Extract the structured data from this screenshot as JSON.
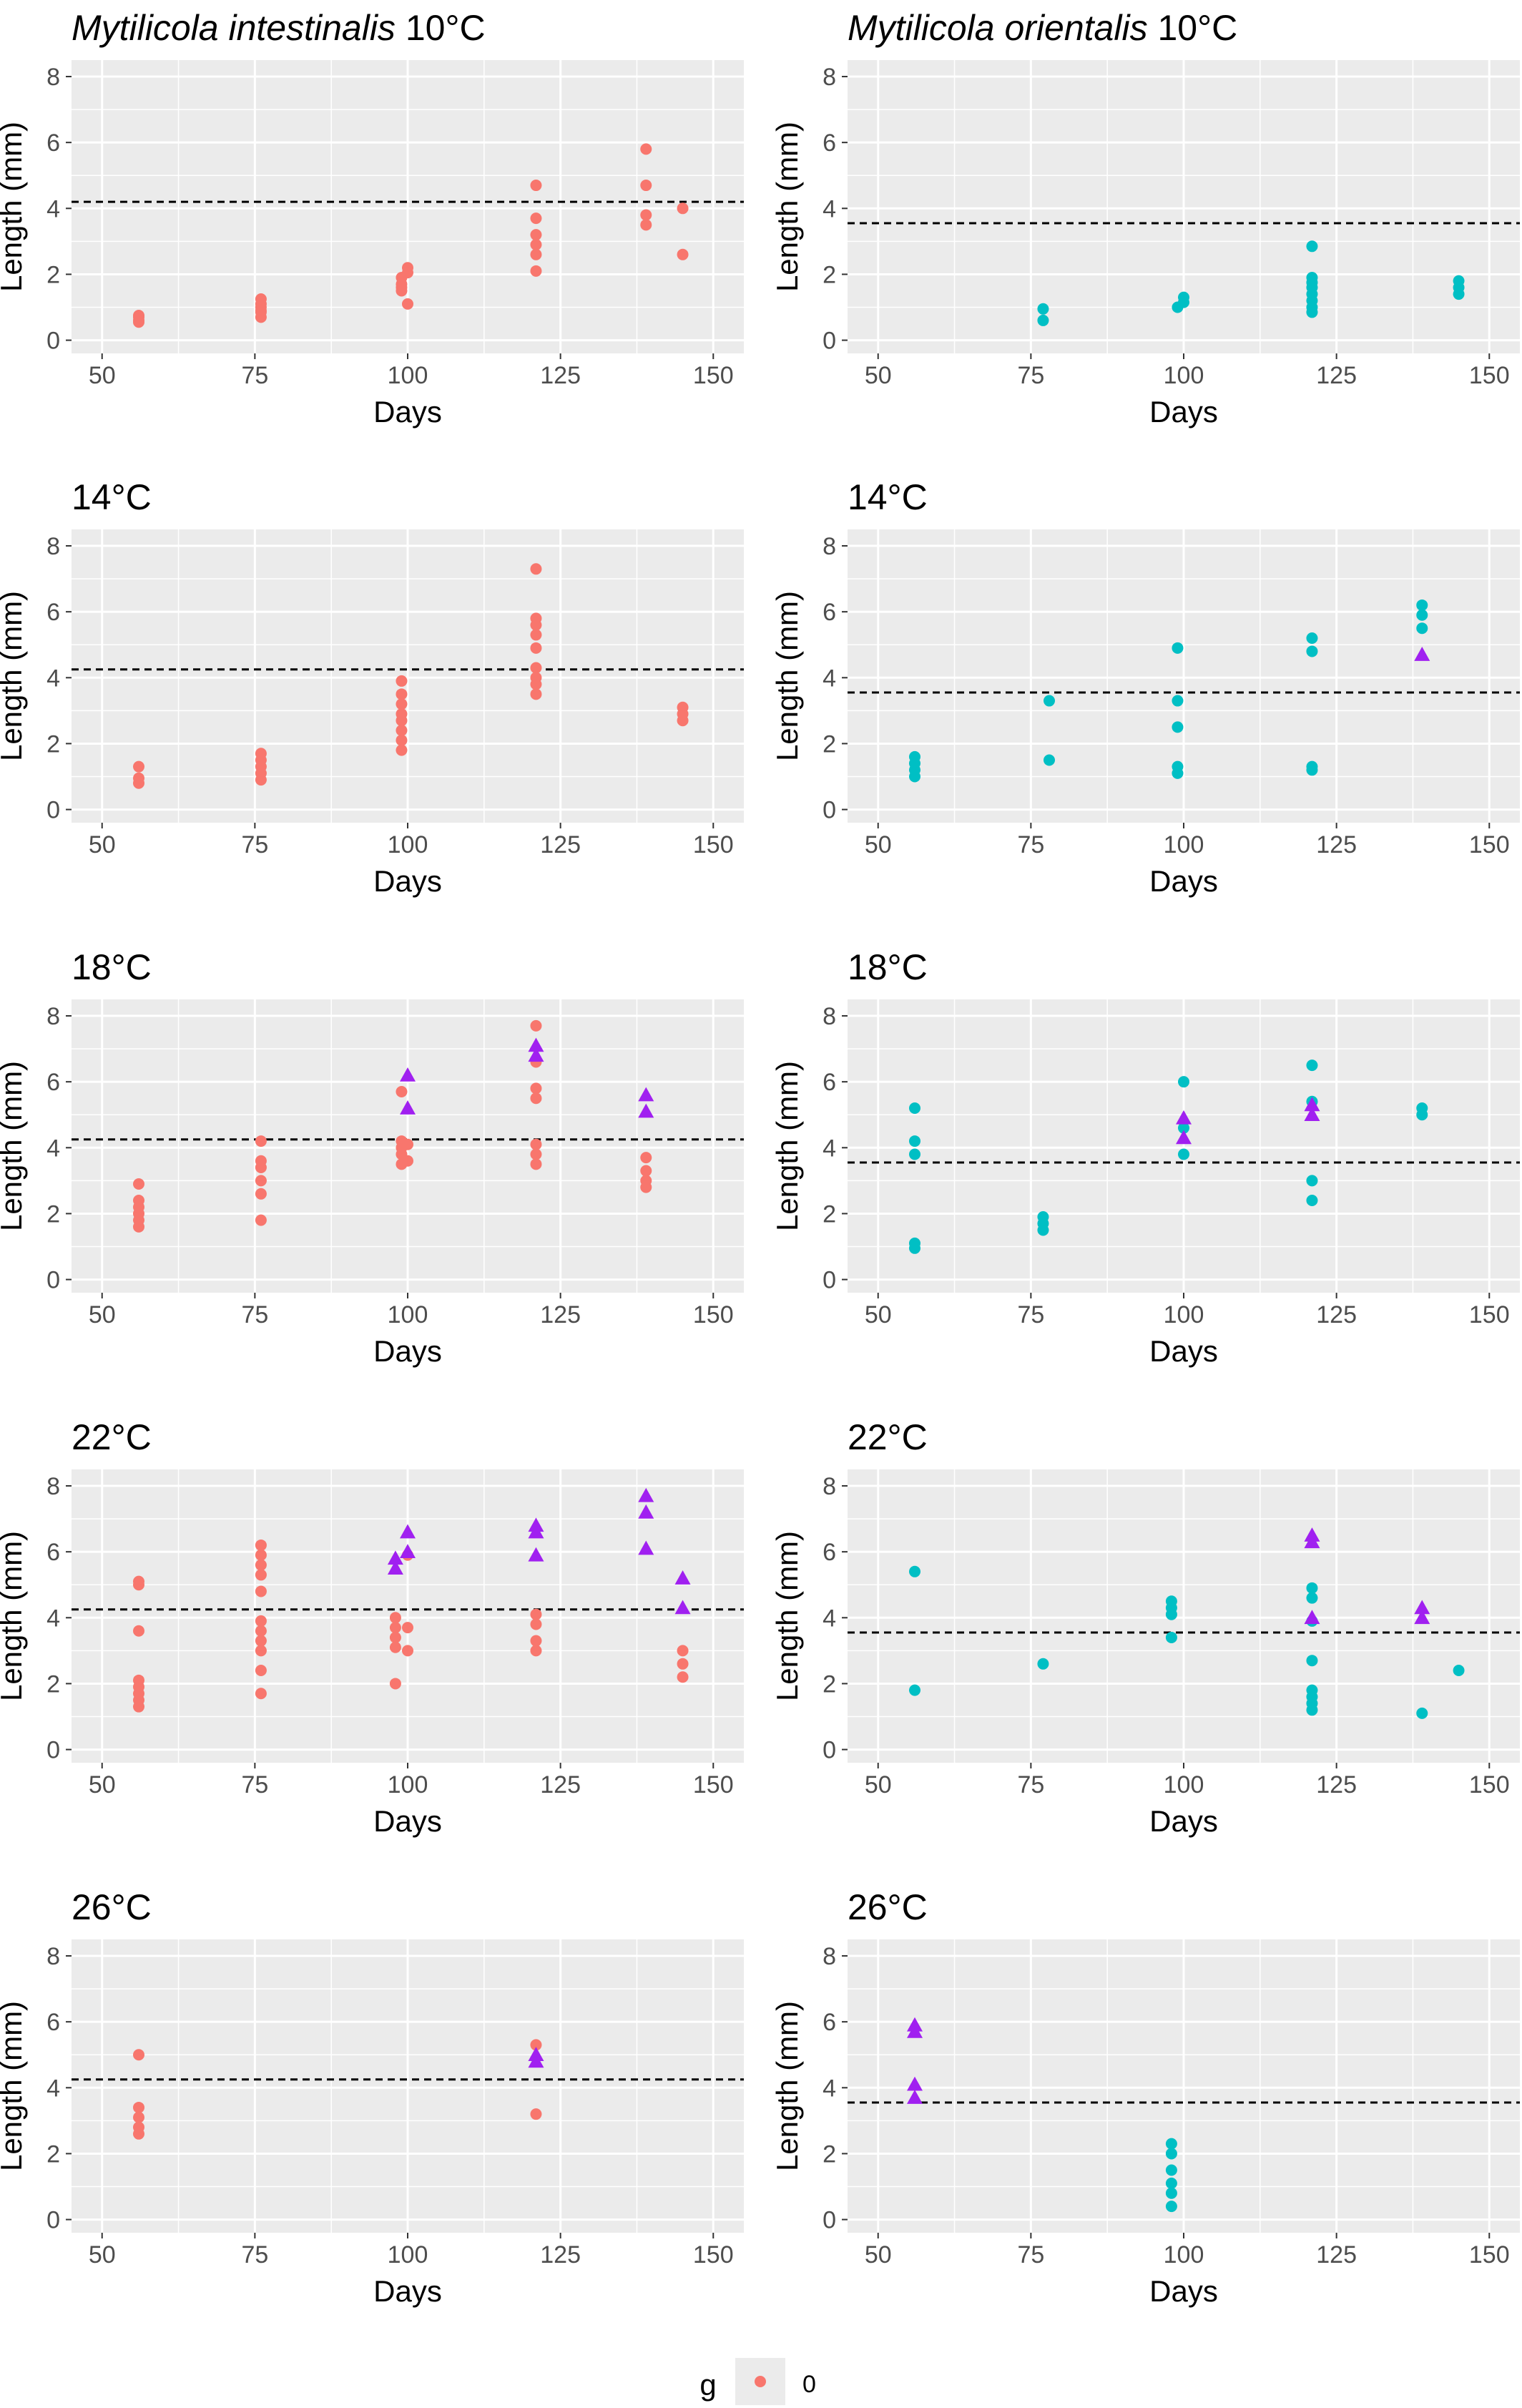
{
  "figure": {
    "legend": {
      "title": "g",
      "label": "0"
    },
    "colors": {
      "intestinalis": "#F8766D",
      "orientalis": "#00BFC4",
      "triangle": "#A020F0",
      "panel_bg": "#EBEBEB",
      "grid": "#FFFFFF",
      "axis_text": "#4D4D4D"
    }
  },
  "chart_data": [
    {
      "id": "int10",
      "type": "scatter",
      "title_species": "Mytilicola intestinalis",
      "title_temp": " 10°C",
      "xlabel": "Days",
      "ylabel": "Length (mm)",
      "xlim": [
        45,
        155
      ],
      "ylim": [
        -0.4,
        8.5
      ],
      "xticks": [
        "50",
        "75",
        "100",
        "125",
        "150"
      ],
      "yticks": [
        "0",
        "2",
        "4",
        "6",
        "8"
      ],
      "hline": 4.2,
      "color_key": "intestinalis",
      "circles": [
        [
          56,
          0.6
        ],
        [
          56,
          0.7
        ],
        [
          56,
          0.75
        ],
        [
          56,
          0.55
        ],
        [
          76,
          0.7
        ],
        [
          76,
          0.85
        ],
        [
          76,
          1.0
        ],
        [
          76,
          1.1
        ],
        [
          76,
          1.25
        ],
        [
          76,
          0.9
        ],
        [
          99,
          1.5
        ],
        [
          99,
          1.7
        ],
        [
          99,
          1.9
        ],
        [
          99,
          1.6
        ],
        [
          100,
          2.2
        ],
        [
          100,
          2.05
        ],
        [
          100,
          1.1
        ],
        [
          121,
          2.1
        ],
        [
          121,
          2.6
        ],
        [
          121,
          2.9
        ],
        [
          121,
          3.2
        ],
        [
          121,
          3.7
        ],
        [
          121,
          4.7
        ],
        [
          139,
          3.5
        ],
        [
          139,
          3.8
        ],
        [
          139,
          4.7
        ],
        [
          139,
          5.8
        ],
        [
          145,
          2.6
        ],
        [
          145,
          4.0
        ]
      ],
      "triangles": []
    },
    {
      "id": "ori10",
      "type": "scatter",
      "title_species": "Mytilicola orientalis",
      "title_temp": " 10°C",
      "xlabel": "Days",
      "ylabel": "Length (mm)",
      "xlim": [
        45,
        155
      ],
      "ylim": [
        -0.4,
        8.5
      ],
      "xticks": [
        "50",
        "75",
        "100",
        "125",
        "150"
      ],
      "yticks": [
        "0",
        "2",
        "4",
        "6",
        "8"
      ],
      "hline": 3.55,
      "color_key": "orientalis",
      "circles": [
        [
          77,
          0.6
        ],
        [
          77,
          0.95
        ],
        [
          99,
          1.0
        ],
        [
          100,
          1.15
        ],
        [
          100,
          1.3
        ],
        [
          121,
          0.85
        ],
        [
          121,
          1.0
        ],
        [
          121,
          1.2
        ],
        [
          121,
          1.4
        ],
        [
          121,
          1.6
        ],
        [
          121,
          1.75
        ],
        [
          121,
          1.9
        ],
        [
          121,
          2.85
        ],
        [
          145,
          1.4
        ],
        [
          145,
          1.6
        ],
        [
          145,
          1.8
        ]
      ],
      "triangles": []
    },
    {
      "id": "int14",
      "type": "scatter",
      "title_temp": "14°C",
      "xlabel": "Days",
      "ylabel": "Length (mm)",
      "xlim": [
        45,
        155
      ],
      "ylim": [
        -0.4,
        8.5
      ],
      "xticks": [
        "50",
        "75",
        "100",
        "125",
        "150"
      ],
      "yticks": [
        "0",
        "2",
        "4",
        "6",
        "8"
      ],
      "hline": 4.25,
      "color_key": "intestinalis",
      "circles": [
        [
          56,
          0.8
        ],
        [
          56,
          0.95
        ],
        [
          56,
          1.3
        ],
        [
          76,
          0.9
        ],
        [
          76,
          1.1
        ],
        [
          76,
          1.3
        ],
        [
          76,
          1.5
        ],
        [
          76,
          1.7
        ],
        [
          99,
          1.8
        ],
        [
          99,
          2.1
        ],
        [
          99,
          2.4
        ],
        [
          99,
          2.7
        ],
        [
          99,
          2.9
        ],
        [
          99,
          3.2
        ],
        [
          99,
          3.5
        ],
        [
          99,
          3.9
        ],
        [
          121,
          3.5
        ],
        [
          121,
          3.8
        ],
        [
          121,
          4.0
        ],
        [
          121,
          4.3
        ],
        [
          121,
          4.9
        ],
        [
          121,
          5.3
        ],
        [
          121,
          5.6
        ],
        [
          121,
          5.8
        ],
        [
          121,
          7.3
        ],
        [
          145,
          2.7
        ],
        [
          145,
          2.9
        ],
        [
          145,
          3.1
        ]
      ],
      "triangles": []
    },
    {
      "id": "ori14",
      "type": "scatter",
      "title_temp": "14°C",
      "xlabel": "Days",
      "ylabel": "Length (mm)",
      "xlim": [
        45,
        155
      ],
      "ylim": [
        -0.4,
        8.5
      ],
      "xticks": [
        "50",
        "75",
        "100",
        "125",
        "150"
      ],
      "yticks": [
        "0",
        "2",
        "4",
        "6",
        "8"
      ],
      "hline": 3.55,
      "color_key": "orientalis",
      "circles": [
        [
          56,
          1.0
        ],
        [
          56,
          1.2
        ],
        [
          56,
          1.4
        ],
        [
          56,
          1.6
        ],
        [
          78,
          1.5
        ],
        [
          78,
          3.3
        ],
        [
          99,
          1.1
        ],
        [
          99,
          1.3
        ],
        [
          99,
          2.5
        ],
        [
          99,
          3.3
        ],
        [
          99,
          4.9
        ],
        [
          121,
          1.2
        ],
        [
          121,
          1.3
        ],
        [
          121,
          4.8
        ],
        [
          121,
          5.2
        ],
        [
          139,
          5.5
        ],
        [
          139,
          5.9
        ],
        [
          139,
          6.2
        ]
      ],
      "triangles": [
        [
          139,
          4.7
        ]
      ]
    },
    {
      "id": "int18",
      "type": "scatter",
      "title_temp": "18°C",
      "xlabel": "Days",
      "ylabel": "Length (mm)",
      "xlim": [
        45,
        155
      ],
      "ylim": [
        -0.4,
        8.5
      ],
      "xticks": [
        "50",
        "75",
        "100",
        "125",
        "150"
      ],
      "yticks": [
        "0",
        "2",
        "4",
        "6",
        "8"
      ],
      "hline": 4.25,
      "color_key": "intestinalis",
      "circles": [
        [
          56,
          1.6
        ],
        [
          56,
          1.8
        ],
        [
          56,
          2.0
        ],
        [
          56,
          2.2
        ],
        [
          56,
          2.4
        ],
        [
          56,
          2.9
        ],
        [
          76,
          1.8
        ],
        [
          76,
          2.6
        ],
        [
          76,
          3.0
        ],
        [
          76,
          3.4
        ],
        [
          76,
          3.6
        ],
        [
          76,
          4.2
        ],
        [
          99,
          3.5
        ],
        [
          99,
          3.8
        ],
        [
          99,
          4.0
        ],
        [
          99,
          4.2
        ],
        [
          99,
          5.7
        ],
        [
          100,
          3.6
        ],
        [
          100,
          4.1
        ],
        [
          121,
          3.5
        ],
        [
          121,
          3.8
        ],
        [
          121,
          4.1
        ],
        [
          121,
          5.5
        ],
        [
          121,
          5.8
        ],
        [
          121,
          6.6
        ],
        [
          121,
          7.7
        ],
        [
          139,
          2.8
        ],
        [
          139,
          3.0
        ],
        [
          139,
          3.3
        ],
        [
          139,
          3.7
        ]
      ],
      "triangles": [
        [
          100,
          6.2
        ],
        [
          100,
          5.2
        ],
        [
          121,
          6.8
        ],
        [
          121,
          7.1
        ],
        [
          139,
          5.6
        ],
        [
          139,
          5.1
        ]
      ]
    },
    {
      "id": "ori18",
      "type": "scatter",
      "title_temp": "18°C",
      "xlabel": "Days",
      "ylabel": "Length (mm)",
      "xlim": [
        45,
        155
      ],
      "ylim": [
        -0.4,
        8.5
      ],
      "xticks": [
        "50",
        "75",
        "100",
        "125",
        "150"
      ],
      "yticks": [
        "0",
        "2",
        "4",
        "6",
        "8"
      ],
      "hline": 3.55,
      "color_key": "orientalis",
      "circles": [
        [
          56,
          0.95
        ],
        [
          56,
          1.1
        ],
        [
          56,
          3.8
        ],
        [
          56,
          4.2
        ],
        [
          56,
          5.2
        ],
        [
          77,
          1.5
        ],
        [
          77,
          1.7
        ],
        [
          77,
          1.9
        ],
        [
          100,
          3.8
        ],
        [
          100,
          4.6
        ],
        [
          100,
          6.0
        ],
        [
          121,
          2.4
        ],
        [
          121,
          3.0
        ],
        [
          121,
          5.4
        ],
        [
          121,
          6.5
        ],
        [
          139,
          5.0
        ],
        [
          139,
          5.2
        ]
      ],
      "triangles": [
        [
          100,
          4.3
        ],
        [
          100,
          4.9
        ],
        [
          121,
          5.0
        ],
        [
          121,
          5.3
        ]
      ]
    },
    {
      "id": "int22",
      "type": "scatter",
      "title_temp": "22°C",
      "xlabel": "Days",
      "ylabel": "Length (mm)",
      "xlim": [
        45,
        155
      ],
      "ylim": [
        -0.4,
        8.5
      ],
      "xticks": [
        "50",
        "75",
        "100",
        "125",
        "150"
      ],
      "yticks": [
        "0",
        "2",
        "4",
        "6",
        "8"
      ],
      "hline": 4.25,
      "color_key": "intestinalis",
      "circles": [
        [
          56,
          1.3
        ],
        [
          56,
          1.5
        ],
        [
          56,
          1.7
        ],
        [
          56,
          1.9
        ],
        [
          56,
          2.1
        ],
        [
          56,
          3.6
        ],
        [
          56,
          5.0
        ],
        [
          56,
          5.1
        ],
        [
          76,
          1.7
        ],
        [
          76,
          2.4
        ],
        [
          76,
          3.0
        ],
        [
          76,
          3.3
        ],
        [
          76,
          3.6
        ],
        [
          76,
          3.9
        ],
        [
          76,
          4.8
        ],
        [
          76,
          5.3
        ],
        [
          76,
          5.6
        ],
        [
          76,
          5.9
        ],
        [
          76,
          6.2
        ],
        [
          98,
          2.0
        ],
        [
          98,
          3.1
        ],
        [
          98,
          3.4
        ],
        [
          98,
          3.7
        ],
        [
          98,
          4.0
        ],
        [
          100,
          3.0
        ],
        [
          100,
          3.7
        ],
        [
          100,
          5.9
        ],
        [
          121,
          3.0
        ],
        [
          121,
          3.3
        ],
        [
          121,
          3.8
        ],
        [
          121,
          4.1
        ],
        [
          145,
          2.2
        ],
        [
          145,
          2.6
        ],
        [
          145,
          3.0
        ]
      ],
      "triangles": [
        [
          98,
          5.5
        ],
        [
          98,
          5.8
        ],
        [
          100,
          6.0
        ],
        [
          100,
          6.6
        ],
        [
          121,
          5.9
        ],
        [
          121,
          6.6
        ],
        [
          121,
          6.8
        ],
        [
          139,
          6.1
        ],
        [
          139,
          7.2
        ],
        [
          139,
          7.7
        ],
        [
          145,
          5.2
        ],
        [
          145,
          4.3
        ]
      ]
    },
    {
      "id": "ori22",
      "type": "scatter",
      "title_temp": "22°C",
      "xlabel": "Days",
      "ylabel": "Length (mm)",
      "xlim": [
        45,
        155
      ],
      "ylim": [
        -0.4,
        8.5
      ],
      "xticks": [
        "50",
        "75",
        "100",
        "125",
        "150"
      ],
      "yticks": [
        "0",
        "2",
        "4",
        "6",
        "8"
      ],
      "hline": 3.55,
      "color_key": "orientalis",
      "circles": [
        [
          56,
          1.8
        ],
        [
          56,
          5.4
        ],
        [
          77,
          2.6
        ],
        [
          98,
          3.4
        ],
        [
          98,
          4.1
        ],
        [
          98,
          4.3
        ],
        [
          98,
          4.5
        ],
        [
          121,
          1.2
        ],
        [
          121,
          1.4
        ],
        [
          121,
          1.6
        ],
        [
          121,
          1.8
        ],
        [
          121,
          2.7
        ],
        [
          121,
          3.9
        ],
        [
          121,
          4.6
        ],
        [
          121,
          4.9
        ],
        [
          139,
          1.1
        ],
        [
          145,
          2.4
        ]
      ],
      "triangles": [
        [
          121,
          4.0
        ],
        [
          121,
          6.3
        ],
        [
          121,
          6.5
        ],
        [
          139,
          4.0
        ],
        [
          139,
          4.3
        ]
      ]
    },
    {
      "id": "int26",
      "type": "scatter",
      "title_temp": "26°C",
      "xlabel": "Days",
      "ylabel": "Length (mm)",
      "xlim": [
        45,
        155
      ],
      "ylim": [
        -0.4,
        8.5
      ],
      "xticks": [
        "50",
        "75",
        "100",
        "125",
        "150"
      ],
      "yticks": [
        "0",
        "2",
        "4",
        "6",
        "8"
      ],
      "hline": 4.25,
      "color_key": "intestinalis",
      "circles": [
        [
          56,
          2.6
        ],
        [
          56,
          2.8
        ],
        [
          56,
          3.1
        ],
        [
          56,
          3.4
        ],
        [
          56,
          5.0
        ],
        [
          121,
          3.2
        ],
        [
          121,
          5.3
        ]
      ],
      "triangles": [
        [
          121,
          4.8
        ],
        [
          121,
          5.0
        ]
      ]
    },
    {
      "id": "ori26",
      "type": "scatter",
      "title_temp": "26°C",
      "xlabel": "Days",
      "ylabel": "Length (mm)",
      "xlim": [
        45,
        155
      ],
      "ylim": [
        -0.4,
        8.5
      ],
      "xticks": [
        "50",
        "75",
        "100",
        "125",
        "150"
      ],
      "yticks": [
        "0",
        "2",
        "4",
        "6",
        "8"
      ],
      "hline": 3.55,
      "color_key": "orientalis",
      "circles": [
        [
          98,
          0.4
        ],
        [
          98,
          0.8
        ],
        [
          98,
          1.1
        ],
        [
          98,
          1.5
        ],
        [
          98,
          2.0
        ],
        [
          98,
          2.3
        ]
      ],
      "triangles": [
        [
          56,
          3.7
        ],
        [
          56,
          4.1
        ],
        [
          56,
          5.7
        ],
        [
          56,
          5.9
        ]
      ]
    }
  ]
}
